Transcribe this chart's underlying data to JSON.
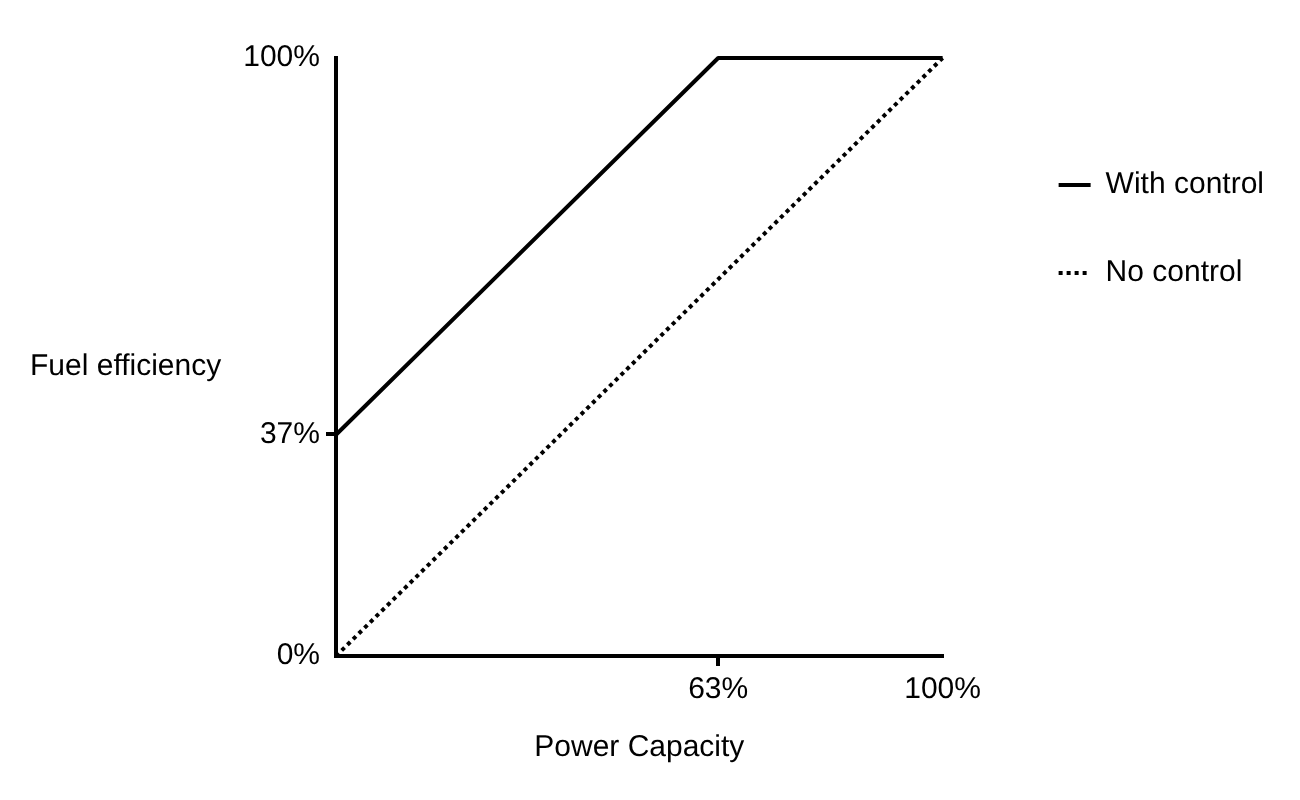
{
  "chart_data": {
    "type": "line",
    "xlabel": "Power Capacity",
    "ylabel": "Fuel efficiency",
    "xlim": [
      0,
      100
    ],
    "ylim": [
      0,
      100
    ],
    "xticks": [
      {
        "value": 63,
        "label": "63%"
      },
      {
        "value": 100,
        "label": "100%"
      }
    ],
    "yticks": [
      {
        "value": 0,
        "label": "0%"
      },
      {
        "value": 37,
        "label": "37%"
      },
      {
        "value": 100,
        "label": "100%"
      }
    ],
    "series": [
      {
        "name": "With control",
        "color": "#000000",
        "x": [
          0,
          63,
          100
        ],
        "values": [
          37,
          100,
          100
        ],
        "line_style": "solid"
      },
      {
        "name": "No control",
        "color": "#000000",
        "x": [
          0,
          100
        ],
        "values": [
          0,
          100
        ],
        "line_style": "dotted"
      }
    ],
    "legend": "right",
    "marker": "none"
  }
}
